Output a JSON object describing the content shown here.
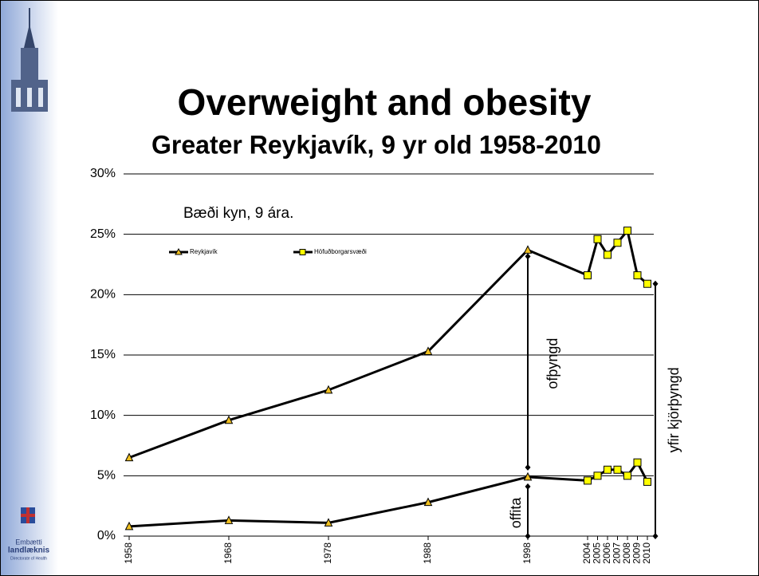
{
  "chart_data": {
    "type": "line",
    "title": "Overweight and obesity",
    "subtitle": "Greater Reykjavík, 9 yr old 1958-2010",
    "annotation": "Bæði kyn, 9 ára.",
    "overweight_label": "ofþyngd",
    "obesity_label": "offita",
    "above_label": "yfir kjörþyngd",
    "logo_text": [
      "Embætti",
      "landlæknis",
      "Directorate of Health"
    ],
    "x": [
      1958,
      1968,
      1978,
      1988,
      1998,
      2004,
      2005,
      2006,
      2007,
      2008,
      2009,
      2010
    ],
    "xticks": [
      1958,
      1968,
      1978,
      1988,
      1998,
      2004,
      2005,
      2006,
      2007,
      2008,
      2009,
      2010
    ],
    "ylim": [
      0,
      30
    ],
    "yticks": [
      {
        "value": 0,
        "label": "0%"
      },
      {
        "value": 5,
        "label": "5%"
      },
      {
        "value": 10,
        "label": "10%"
      },
      {
        "value": 15,
        "label": "15%"
      },
      {
        "value": 20,
        "label": "20%"
      },
      {
        "value": 25,
        "label": "25%"
      },
      {
        "value": 30,
        "label": "30%"
      }
    ],
    "grid": true,
    "series": [
      {
        "name": "Reykjavík",
        "marker": "triangle",
        "color": "#f0c020",
        "values": [
          6.5,
          9.6,
          12.1,
          15.3,
          23.7,
          null,
          null,
          null,
          null,
          null,
          null,
          null
        ],
        "obesity_values": [
          0.8,
          1.3,
          1.1,
          2.8,
          4.9,
          null,
          null,
          null,
          null,
          null,
          null,
          null
        ]
      },
      {
        "name": "Höfuðborgarsvæði",
        "marker": "square",
        "color": "#ffff00",
        "values": [
          null,
          null,
          null,
          null,
          null,
          21.6,
          24.6,
          23.3,
          24.3,
          25.3,
          21.6,
          20.9
        ],
        "obesity_values": [
          null,
          null,
          null,
          null,
          null,
          4.6,
          5.0,
          5.5,
          5.5,
          5.0,
          6.1,
          4.5
        ]
      }
    ]
  }
}
